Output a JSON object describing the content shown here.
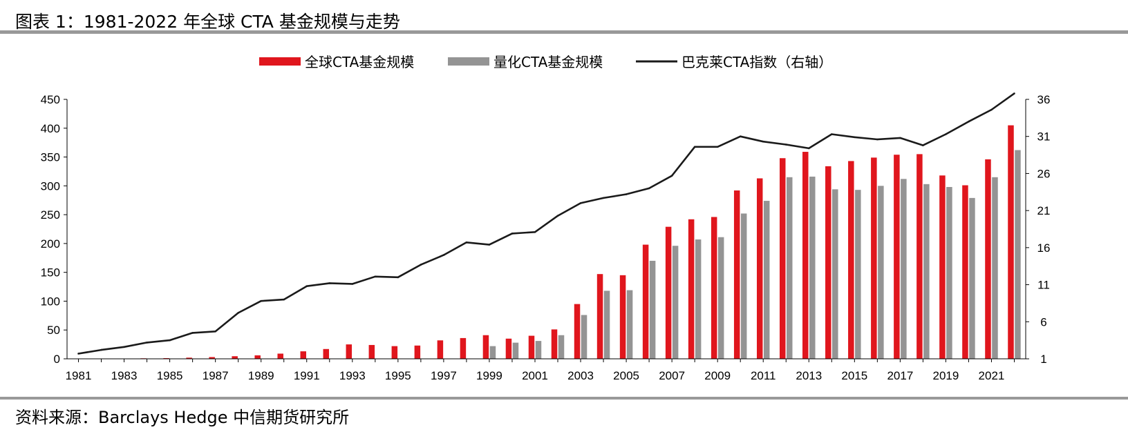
{
  "title": "图表 1：1981-2022 年全球 CTA 基金规模与走势",
  "source": "资料来源：Barclays Hedge 中信期货研究所",
  "colors": {
    "global": "#e0161d",
    "quant": "#949494",
    "index": "#1a1a1a",
    "rule": "#999999"
  },
  "chart_data": {
    "type": "bar",
    "legend_position": "top-center",
    "grid": false,
    "x": [
      1981,
      1982,
      1983,
      1984,
      1985,
      1986,
      1987,
      1988,
      1989,
      1990,
      1991,
      1992,
      1993,
      1994,
      1995,
      1996,
      1997,
      1998,
      1999,
      2000,
      2001,
      2002,
      2003,
      2004,
      2005,
      2006,
      2007,
      2008,
      2009,
      2010,
      2011,
      2012,
      2013,
      2014,
      2015,
      2016,
      2017,
      2018,
      2019,
      2020,
      2021,
      2022
    ],
    "x_tick_labels": [
      "1981",
      "1983",
      "1985",
      "1987",
      "1989",
      "1991",
      "1993",
      "1995",
      "1997",
      "1999",
      "2001",
      "2003",
      "2005",
      "2007",
      "2009",
      "2011",
      "2013",
      "2015",
      "2017",
      "2019",
      "2021"
    ],
    "y_left": {
      "lim": [
        0,
        450
      ],
      "ticks": [
        "0",
        "50",
        "100",
        "150",
        "200",
        "250",
        "300",
        "350",
        "400",
        "450"
      ]
    },
    "y_right": {
      "lim": [
        1,
        36
      ],
      "ticks": [
        "1",
        "6",
        "11",
        "16",
        "21",
        "26",
        "31",
        "36"
      ]
    },
    "series": [
      {
        "name": "全球CTA基金规模",
        "kind": "bar",
        "axis": "left",
        "values": [
          0.3,
          0.4,
          0.6,
          0.9,
          1.2,
          2,
          3,
          4.5,
          6,
          9,
          13,
          17,
          25,
          24,
          22,
          23,
          32,
          36,
          41,
          35,
          40,
          51,
          95,
          147,
          145,
          198,
          229,
          242,
          246,
          292,
          313,
          348,
          359,
          334,
          343,
          349,
          354,
          355,
          318,
          301,
          346,
          405
        ]
      },
      {
        "name": "量化CTA基金规模",
        "kind": "bar",
        "axis": "left",
        "values": [
          null,
          null,
          null,
          null,
          null,
          null,
          null,
          null,
          null,
          null,
          null,
          null,
          null,
          null,
          null,
          null,
          null,
          null,
          22,
          28,
          31,
          41,
          76,
          118,
          119,
          170,
          196,
          207,
          211,
          252,
          274,
          315,
          316,
          294,
          293,
          300,
          312,
          303,
          298,
          279,
          315,
          362
        ]
      },
      {
        "name": "巴克莱CTA指数（右轴）",
        "kind": "line",
        "axis": "right",
        "values": [
          1.7,
          2.2,
          2.6,
          3.2,
          3.5,
          4.5,
          4.7,
          7.2,
          8.8,
          9.0,
          10.8,
          11.2,
          11.1,
          12.1,
          12.0,
          13.7,
          15.0,
          16.7,
          16.4,
          17.9,
          18.1,
          20.3,
          22.0,
          22.7,
          23.2,
          24.0,
          25.7,
          29.6,
          29.6,
          31.0,
          30.3,
          29.9,
          29.4,
          31.3,
          30.9,
          30.6,
          30.8,
          29.8,
          31.3,
          33.0,
          34.6,
          36.8
        ]
      }
    ]
  }
}
